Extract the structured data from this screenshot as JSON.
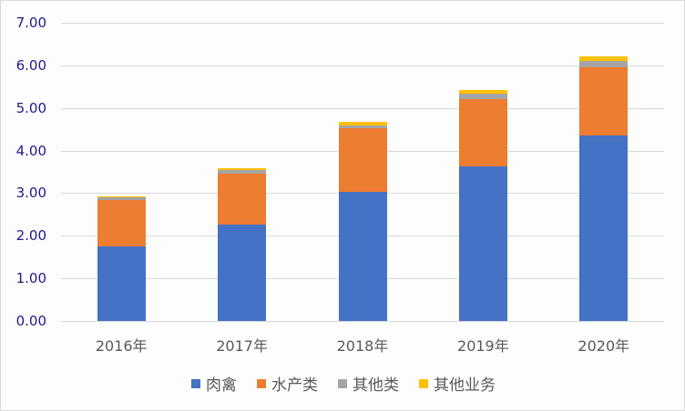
{
  "chart_data": {
    "type": "bar",
    "stacked": true,
    "title": "",
    "xlabel": "",
    "ylabel": "",
    "categories": [
      "2016年",
      "2017年",
      "2018年",
      "2019年",
      "2020年"
    ],
    "series": [
      {
        "name": "肉禽",
        "color": "#4472C4",
        "values": [
          1.75,
          2.26,
          3.03,
          3.63,
          4.35
        ]
      },
      {
        "name": "水产类",
        "color": "#ED7D31",
        "values": [
          1.09,
          1.2,
          1.49,
          1.58,
          1.6
        ]
      },
      {
        "name": "其他类",
        "color": "#A5A5A5",
        "values": [
          0.06,
          0.08,
          0.07,
          0.13,
          0.15
        ]
      },
      {
        "name": "其他业务",
        "color": "#FFC000",
        "values": [
          0.02,
          0.04,
          0.08,
          0.08,
          0.11
        ]
      }
    ],
    "ylim": [
      0,
      7
    ],
    "yticks": [
      "0.00",
      "1.00",
      "2.00",
      "3.00",
      "4.00",
      "5.00",
      "6.00",
      "7.00"
    ],
    "grid": true,
    "legend_position": "bottom"
  }
}
